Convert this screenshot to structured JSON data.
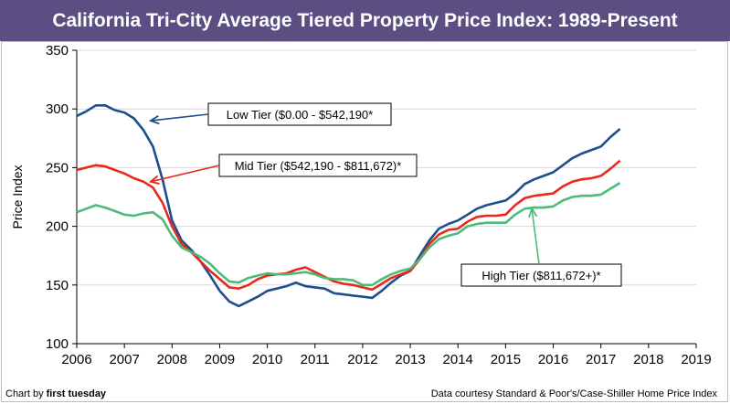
{
  "header": {
    "title": "California Tri-City Average Tiered Property Price Index: 1989-Present"
  },
  "footer": {
    "left_prefix": "Chart by ",
    "left_brand": "first tuesday",
    "right": "Data courtesy Standard & Poor's/Case-Shiller Home Price Index"
  },
  "colors": {
    "title_bg": "#5a4e82",
    "low": "#1f4e8c",
    "mid": "#e8281a",
    "high": "#4cbb7a",
    "grid": "#d9d9d9"
  },
  "chart_data": {
    "type": "line",
    "title": "California Tri-City Average Tiered Property Price Index: 1989-Present",
    "xlabel": "",
    "ylabel": "Price Index",
    "xlim": [
      2006,
      2019
    ],
    "ylim": [
      100,
      350
    ],
    "xticks": [
      "2006",
      "2007",
      "2008",
      "2009",
      "2010",
      "2011",
      "2012",
      "2013",
      "2014",
      "2015",
      "2016",
      "2017",
      "2018",
      "2019"
    ],
    "yticks": [
      "100",
      "150",
      "200",
      "250",
      "300",
      "350"
    ],
    "grid": true,
    "series": [
      {
        "name": "Low Tier ($0.00 - $542,190*",
        "key": "low",
        "points": [
          [
            2006.0,
            294
          ],
          [
            2006.2,
            298
          ],
          [
            2006.4,
            303
          ],
          [
            2006.6,
            303
          ],
          [
            2006.8,
            299
          ],
          [
            2007.0,
            297
          ],
          [
            2007.2,
            292
          ],
          [
            2007.4,
            282
          ],
          [
            2007.6,
            268
          ],
          [
            2007.8,
            240
          ],
          [
            2008.0,
            205
          ],
          [
            2008.2,
            188
          ],
          [
            2008.4,
            180
          ],
          [
            2008.6,
            170
          ],
          [
            2008.8,
            158
          ],
          [
            2009.0,
            145
          ],
          [
            2009.2,
            136
          ],
          [
            2009.4,
            132
          ],
          [
            2009.6,
            136
          ],
          [
            2009.8,
            140
          ],
          [
            2010.0,
            145
          ],
          [
            2010.2,
            147
          ],
          [
            2010.4,
            149
          ],
          [
            2010.6,
            152
          ],
          [
            2010.8,
            149
          ],
          [
            2011.0,
            148
          ],
          [
            2011.2,
            147
          ],
          [
            2011.4,
            143
          ],
          [
            2011.6,
            142
          ],
          [
            2011.8,
            141
          ],
          [
            2012.0,
            140
          ],
          [
            2012.2,
            139
          ],
          [
            2012.4,
            145
          ],
          [
            2012.6,
            152
          ],
          [
            2012.8,
            158
          ],
          [
            2013.0,
            162
          ],
          [
            2013.2,
            175
          ],
          [
            2013.4,
            188
          ],
          [
            2013.6,
            198
          ],
          [
            2013.8,
            202
          ],
          [
            2014.0,
            205
          ],
          [
            2014.2,
            210
          ],
          [
            2014.4,
            215
          ],
          [
            2014.6,
            218
          ],
          [
            2014.8,
            220
          ],
          [
            2015.0,
            222
          ],
          [
            2015.2,
            228
          ],
          [
            2015.4,
            236
          ],
          [
            2015.6,
            240
          ],
          [
            2015.8,
            243
          ],
          [
            2016.0,
            246
          ],
          [
            2016.2,
            252
          ],
          [
            2016.4,
            258
          ],
          [
            2016.6,
            262
          ],
          [
            2016.8,
            265
          ],
          [
            2017.0,
            268
          ],
          [
            2017.2,
            276
          ],
          [
            2017.4,
            283
          ]
        ]
      },
      {
        "name": "Mid Tier ($542,190 - $811,672)*",
        "key": "mid",
        "points": [
          [
            2006.0,
            248
          ],
          [
            2006.2,
            250
          ],
          [
            2006.4,
            252
          ],
          [
            2006.6,
            251
          ],
          [
            2006.8,
            248
          ],
          [
            2007.0,
            245
          ],
          [
            2007.2,
            241
          ],
          [
            2007.4,
            238
          ],
          [
            2007.6,
            233
          ],
          [
            2007.8,
            220
          ],
          [
            2008.0,
            200
          ],
          [
            2008.2,
            185
          ],
          [
            2008.4,
            178
          ],
          [
            2008.6,
            170
          ],
          [
            2008.8,
            162
          ],
          [
            2009.0,
            155
          ],
          [
            2009.2,
            148
          ],
          [
            2009.4,
            147
          ],
          [
            2009.6,
            150
          ],
          [
            2009.8,
            155
          ],
          [
            2010.0,
            158
          ],
          [
            2010.2,
            159
          ],
          [
            2010.4,
            160
          ],
          [
            2010.6,
            163
          ],
          [
            2010.8,
            165
          ],
          [
            2011.0,
            161
          ],
          [
            2011.2,
            157
          ],
          [
            2011.4,
            153
          ],
          [
            2011.6,
            151
          ],
          [
            2011.8,
            150
          ],
          [
            2012.0,
            148
          ],
          [
            2012.2,
            146
          ],
          [
            2012.4,
            151
          ],
          [
            2012.6,
            156
          ],
          [
            2012.8,
            159
          ],
          [
            2013.0,
            162
          ],
          [
            2013.2,
            172
          ],
          [
            2013.4,
            185
          ],
          [
            2013.6,
            193
          ],
          [
            2013.8,
            197
          ],
          [
            2014.0,
            198
          ],
          [
            2014.2,
            204
          ],
          [
            2014.4,
            208
          ],
          [
            2014.6,
            209
          ],
          [
            2014.8,
            209
          ],
          [
            2015.0,
            210
          ],
          [
            2015.2,
            218
          ],
          [
            2015.4,
            224
          ],
          [
            2015.6,
            226
          ],
          [
            2015.8,
            227
          ],
          [
            2016.0,
            228
          ],
          [
            2016.2,
            234
          ],
          [
            2016.4,
            238
          ],
          [
            2016.6,
            240
          ],
          [
            2016.8,
            241
          ],
          [
            2017.0,
            243
          ],
          [
            2017.2,
            249
          ],
          [
            2017.4,
            256
          ]
        ]
      },
      {
        "name": "High Tier ($811,672+)*",
        "key": "high",
        "points": [
          [
            2006.0,
            212
          ],
          [
            2006.2,
            215
          ],
          [
            2006.4,
            218
          ],
          [
            2006.6,
            216
          ],
          [
            2006.8,
            213
          ],
          [
            2007.0,
            210
          ],
          [
            2007.2,
            209
          ],
          [
            2007.4,
            211
          ],
          [
            2007.6,
            212
          ],
          [
            2007.8,
            206
          ],
          [
            2008.0,
            192
          ],
          [
            2008.2,
            182
          ],
          [
            2008.4,
            178
          ],
          [
            2008.6,
            174
          ],
          [
            2008.8,
            168
          ],
          [
            2009.0,
            160
          ],
          [
            2009.2,
            153
          ],
          [
            2009.4,
            152
          ],
          [
            2009.6,
            156
          ],
          [
            2009.8,
            158
          ],
          [
            2010.0,
            160
          ],
          [
            2010.2,
            159
          ],
          [
            2010.4,
            159
          ],
          [
            2010.6,
            160
          ],
          [
            2010.8,
            161
          ],
          [
            2011.0,
            159
          ],
          [
            2011.2,
            156
          ],
          [
            2011.4,
            155
          ],
          [
            2011.6,
            155
          ],
          [
            2011.8,
            154
          ],
          [
            2012.0,
            150
          ],
          [
            2012.2,
            150
          ],
          [
            2012.4,
            155
          ],
          [
            2012.6,
            159
          ],
          [
            2012.8,
            162
          ],
          [
            2013.0,
            164
          ],
          [
            2013.2,
            172
          ],
          [
            2013.4,
            182
          ],
          [
            2013.6,
            189
          ],
          [
            2013.8,
            192
          ],
          [
            2014.0,
            194
          ],
          [
            2014.2,
            200
          ],
          [
            2014.4,
            202
          ],
          [
            2014.6,
            203
          ],
          [
            2014.8,
            203
          ],
          [
            2015.0,
            203
          ],
          [
            2015.2,
            210
          ],
          [
            2015.4,
            215
          ],
          [
            2015.6,
            216
          ],
          [
            2015.8,
            216
          ],
          [
            2016.0,
            217
          ],
          [
            2016.2,
            222
          ],
          [
            2016.4,
            225
          ],
          [
            2016.6,
            226
          ],
          [
            2016.8,
            226
          ],
          [
            2017.0,
            227
          ],
          [
            2017.2,
            232
          ],
          [
            2017.4,
            237
          ]
        ]
      }
    ],
    "annotations": [
      {
        "text": "Low Tier ($0.00 - $542,190*",
        "series": "low"
      },
      {
        "text": "Mid Tier ($542,190 - $811,672)*",
        "series": "mid"
      },
      {
        "text": "High Tier ($811,672+)*",
        "series": "high"
      }
    ]
  }
}
